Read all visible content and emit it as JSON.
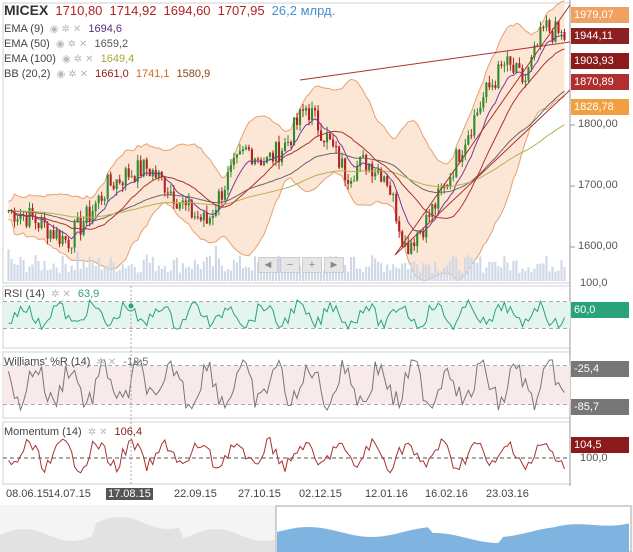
{
  "header": {
    "ticker": "MICEX",
    "open": "1710,80",
    "high": "1714,92",
    "low": "1694,60",
    "close": "1707,95",
    "volume": "26,2 млрд."
  },
  "indicators": [
    {
      "name": "EMA (9)",
      "values": [
        "1694,6"
      ],
      "colors": [
        "#5a2d7a"
      ]
    },
    {
      "name": "EMA (50)",
      "values": [
        "1659,2"
      ],
      "colors": [
        "#555555"
      ]
    },
    {
      "name": "EMA (100)",
      "values": [
        "1649,4"
      ],
      "colors": [
        "#a8a830"
      ]
    },
    {
      "name": "BB (20,2)",
      "values": [
        "1661,0",
        "1741,1",
        "1580,9"
      ],
      "colors": [
        "#8b1a1a",
        "#d2691e",
        "#8b4513"
      ]
    }
  ],
  "price_tags": [
    {
      "text": "1979,07",
      "color": "#f0a060"
    },
    {
      "text": "1944,11",
      "color": "#8b2020"
    },
    {
      "text": "1903,93",
      "color": "#8b1a1a"
    },
    {
      "text": "1870,89",
      "color": "#b03030"
    },
    {
      "text": "1828,78",
      "color": "#f0a040"
    }
  ],
  "price_axis": [
    "1800,00",
    "1700,00",
    "1600,00"
  ],
  "nav": [
    "◄",
    "−",
    "+",
    "►"
  ],
  "panels": [
    {
      "title": "RSI (14)",
      "value": "63,9",
      "tag": "60,0",
      "tag_color": "#2aa37a",
      "axis_top": "100,0"
    },
    {
      "title": "Williams' %R (14)",
      "value": "-12,5",
      "tags": [
        "-25,4",
        "-85,7"
      ],
      "tag_color": "#777777"
    },
    {
      "title": "Momentum (14)",
      "value": "106,4",
      "tag": "104,5",
      "tag_color": "#8b1a1a",
      "axis": "100,0"
    }
  ],
  "x_axis": [
    "08.06.15",
    "14.07.15",
    "17.08.15",
    "22.09.15",
    "27.10.15",
    "02.12.15",
    "12.01.16",
    "16.02.16",
    "23.03.16"
  ],
  "x_highlight": "17.08.15",
  "colors": {
    "up": "#2e8b2e",
    "down": "#b22222",
    "bb_fill": "#fbe3cf",
    "navigator": "#7fb3e0"
  },
  "chart_data": {
    "type": "candlestick",
    "title": "MICEX",
    "ylim": [
      1560,
      2000
    ],
    "x_ticks": [
      "08.06.15",
      "14.07.15",
      "17.08.15",
      "22.09.15",
      "27.10.15",
      "02.12.15",
      "12.01.16",
      "16.02.16",
      "23.03.16"
    ],
    "close_trend": [
      1660,
      1650,
      1630,
      1610,
      1650,
      1700,
      1720,
      1730,
      1700,
      1660,
      1640,
      1710,
      1760,
      1740,
      1770,
      1830,
      1780,
      1720,
      1740,
      1720,
      1600,
      1640,
      1700,
      1780,
      1850,
      1900,
      1870,
      1960,
      1944
    ],
    "last": {
      "open": 1710.8,
      "high": 1714.92,
      "low": 1694.6,
      "close": 1707.95
    },
    "rsi_last": 63.9,
    "williams_r_last": -12.5,
    "momentum_last": 106.4
  }
}
